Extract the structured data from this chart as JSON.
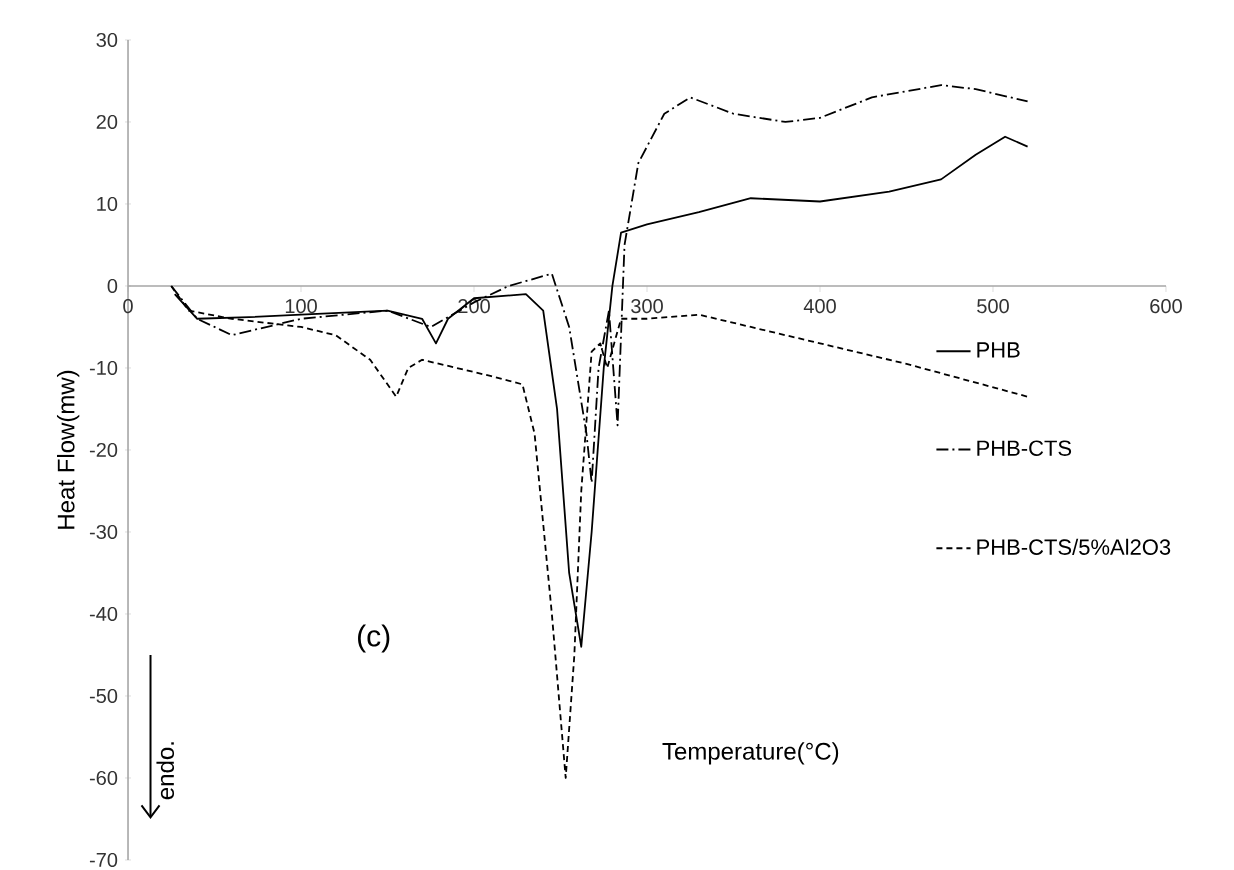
{
  "chart_data": {
    "type": "line",
    "xlabel": "Temperature(°C)",
    "ylabel": "Heat Flow(mw)",
    "annotations": [
      "(c)",
      "endo."
    ],
    "xlim": [
      0,
      600
    ],
    "ylim": [
      -70,
      30
    ],
    "xticks": [
      0,
      100,
      200,
      300,
      400,
      500,
      600
    ],
    "yticks": [
      -70,
      -60,
      -50,
      -40,
      -30,
      -20,
      -10,
      0,
      10,
      20,
      30
    ],
    "grid": false,
    "legend": "right",
    "marker": "none",
    "series": [
      {
        "name": "PHB",
        "color": "#000000",
        "line_style": "solid",
        "x": [
          27,
          40,
          70,
          100,
          150,
          170,
          178,
          185,
          200,
          230,
          240,
          248,
          255,
          262,
          268,
          275,
          280,
          285,
          300,
          330,
          360,
          400,
          440,
          470,
          490,
          507,
          520
        ],
        "values": [
          -1,
          -4,
          -3.8,
          -3.5,
          -3,
          -4,
          -7,
          -4,
          -1.5,
          -1,
          -3,
          -15,
          -35,
          -44,
          -30,
          -10,
          0,
          6.5,
          7.5,
          9,
          10.7,
          10.3,
          11.5,
          13,
          16,
          18.2,
          17
        ]
      },
      {
        "name": "PHB-CTS",
        "color": "#000000",
        "line_style": "dashdot",
        "x": [
          25,
          40,
          60,
          80,
          100,
          150,
          175,
          200,
          220,
          245,
          255,
          265,
          268,
          272,
          278,
          283,
          287,
          295,
          310,
          325,
          350,
          380,
          400,
          430,
          470,
          490,
          520
        ],
        "values": [
          0,
          -4,
          -6,
          -5,
          -4,
          -3,
          -5,
          -2,
          0,
          1.5,
          -5,
          -18,
          -24,
          -10,
          -3,
          -17,
          5,
          15,
          21,
          23,
          21,
          20,
          20.5,
          23,
          24.5,
          24,
          22.5
        ]
      },
      {
        "name": "PHB-CTS/5%Al2O3",
        "color": "#000000",
        "line_style": "dashed",
        "x": [
          25,
          35,
          60,
          100,
          120,
          140,
          155,
          162,
          170,
          210,
          228,
          235,
          245,
          253,
          258,
          262,
          268,
          273,
          277,
          285,
          300,
          330,
          360,
          400,
          450,
          520
        ],
        "values": [
          0,
          -3,
          -4,
          -5,
          -6,
          -9,
          -13.5,
          -10,
          -9,
          -11,
          -12,
          -18,
          -40,
          -60,
          -45,
          -25,
          -8,
          -7,
          -10,
          -4,
          -4,
          -3.5,
          -5,
          -7,
          -9.5,
          -13.5
        ]
      }
    ]
  }
}
